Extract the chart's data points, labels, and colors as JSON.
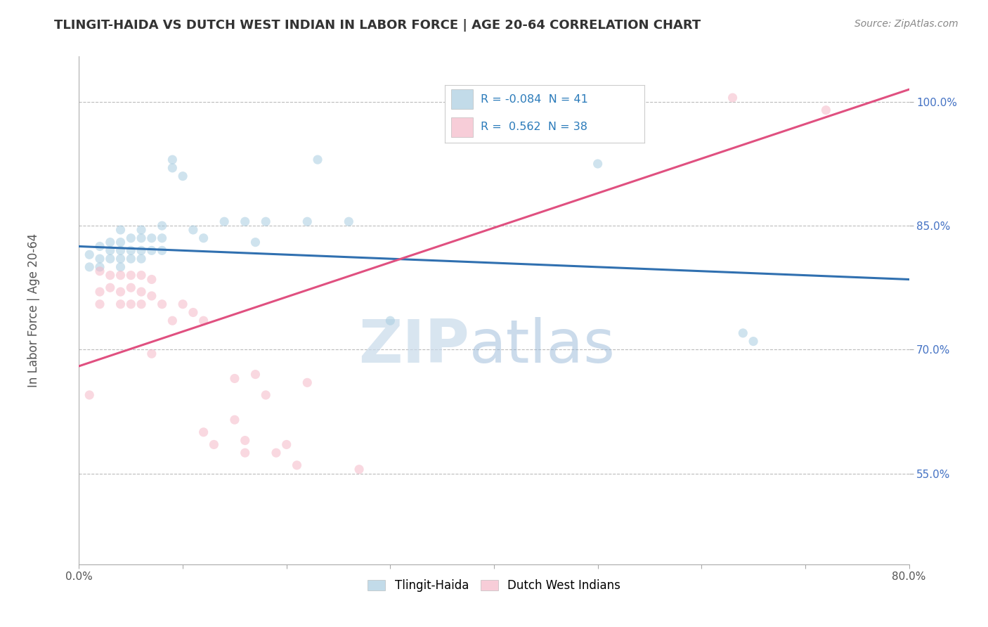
{
  "title": "TLINGIT-HAIDA VS DUTCH WEST INDIAN IN LABOR FORCE | AGE 20-64 CORRELATION CHART",
  "source": "Source: ZipAtlas.com",
  "ylabel": "In Labor Force | Age 20-64",
  "xlim": [
    0.0,
    0.8
  ],
  "ylim": [
    0.44,
    1.055
  ],
  "x_ticks": [
    0.0,
    0.1,
    0.2,
    0.3,
    0.4,
    0.5,
    0.6,
    0.7,
    0.8
  ],
  "y_ticks": [
    0.55,
    0.7,
    0.85,
    1.0
  ],
  "x_tick_labels": [
    "0.0%",
    "",
    "",
    "",
    "",
    "",
    "",
    "",
    "80.0%"
  ],
  "y_tick_labels": [
    "55.0%",
    "70.0%",
    "85.0%",
    "100.0%"
  ],
  "blue_R": -0.084,
  "blue_N": 41,
  "pink_R": 0.562,
  "pink_N": 38,
  "blue_scatter_x": [
    0.01,
    0.01,
    0.02,
    0.02,
    0.02,
    0.03,
    0.03,
    0.03,
    0.04,
    0.04,
    0.04,
    0.04,
    0.04,
    0.05,
    0.05,
    0.05,
    0.06,
    0.06,
    0.06,
    0.06,
    0.07,
    0.07,
    0.08,
    0.08,
    0.08,
    0.09,
    0.09,
    0.1,
    0.11,
    0.12,
    0.14,
    0.16,
    0.17,
    0.18,
    0.22,
    0.23,
    0.26,
    0.3,
    0.5,
    0.64,
    0.65
  ],
  "blue_scatter_y": [
    0.815,
    0.8,
    0.825,
    0.81,
    0.8,
    0.83,
    0.82,
    0.81,
    0.845,
    0.83,
    0.82,
    0.81,
    0.8,
    0.835,
    0.82,
    0.81,
    0.845,
    0.835,
    0.82,
    0.81,
    0.835,
    0.82,
    0.85,
    0.835,
    0.82,
    0.93,
    0.92,
    0.91,
    0.845,
    0.835,
    0.855,
    0.855,
    0.83,
    0.855,
    0.855,
    0.93,
    0.855,
    0.735,
    0.925,
    0.72,
    0.71
  ],
  "pink_scatter_x": [
    0.01,
    0.02,
    0.02,
    0.02,
    0.03,
    0.03,
    0.04,
    0.04,
    0.04,
    0.05,
    0.05,
    0.05,
    0.06,
    0.06,
    0.06,
    0.07,
    0.07,
    0.07,
    0.08,
    0.09,
    0.1,
    0.11,
    0.12,
    0.12,
    0.13,
    0.15,
    0.15,
    0.16,
    0.16,
    0.17,
    0.18,
    0.19,
    0.2,
    0.21,
    0.22,
    0.27,
    0.63,
    0.72
  ],
  "pink_scatter_y": [
    0.645,
    0.795,
    0.77,
    0.755,
    0.79,
    0.775,
    0.79,
    0.77,
    0.755,
    0.79,
    0.775,
    0.755,
    0.79,
    0.77,
    0.755,
    0.785,
    0.765,
    0.695,
    0.755,
    0.735,
    0.755,
    0.745,
    0.735,
    0.6,
    0.585,
    0.665,
    0.615,
    0.59,
    0.575,
    0.67,
    0.645,
    0.575,
    0.585,
    0.56,
    0.66,
    0.555,
    1.005,
    0.99
  ],
  "blue_line_x": [
    0.0,
    0.8
  ],
  "blue_line_y": [
    0.825,
    0.785
  ],
  "pink_line_x": [
    0.0,
    0.8
  ],
  "pink_line_y": [
    0.68,
    1.015
  ],
  "watermark_zip": "ZIP",
  "watermark_atlas": "atlas",
  "scatter_size": 90,
  "scatter_alpha": 0.55,
  "blue_color": "#a8cce0",
  "pink_color": "#f5b8c8",
  "blue_line_color": "#3070b0",
  "pink_line_color": "#e05080",
  "background_color": "#ffffff",
  "grid_color": "#bbbbbb",
  "title_color": "#333333",
  "legend_R_color": "#2b7bba",
  "axis_color": "#4472c4",
  "bottom_legend": [
    "Tlingit-Haida",
    "Dutch West Indians"
  ]
}
